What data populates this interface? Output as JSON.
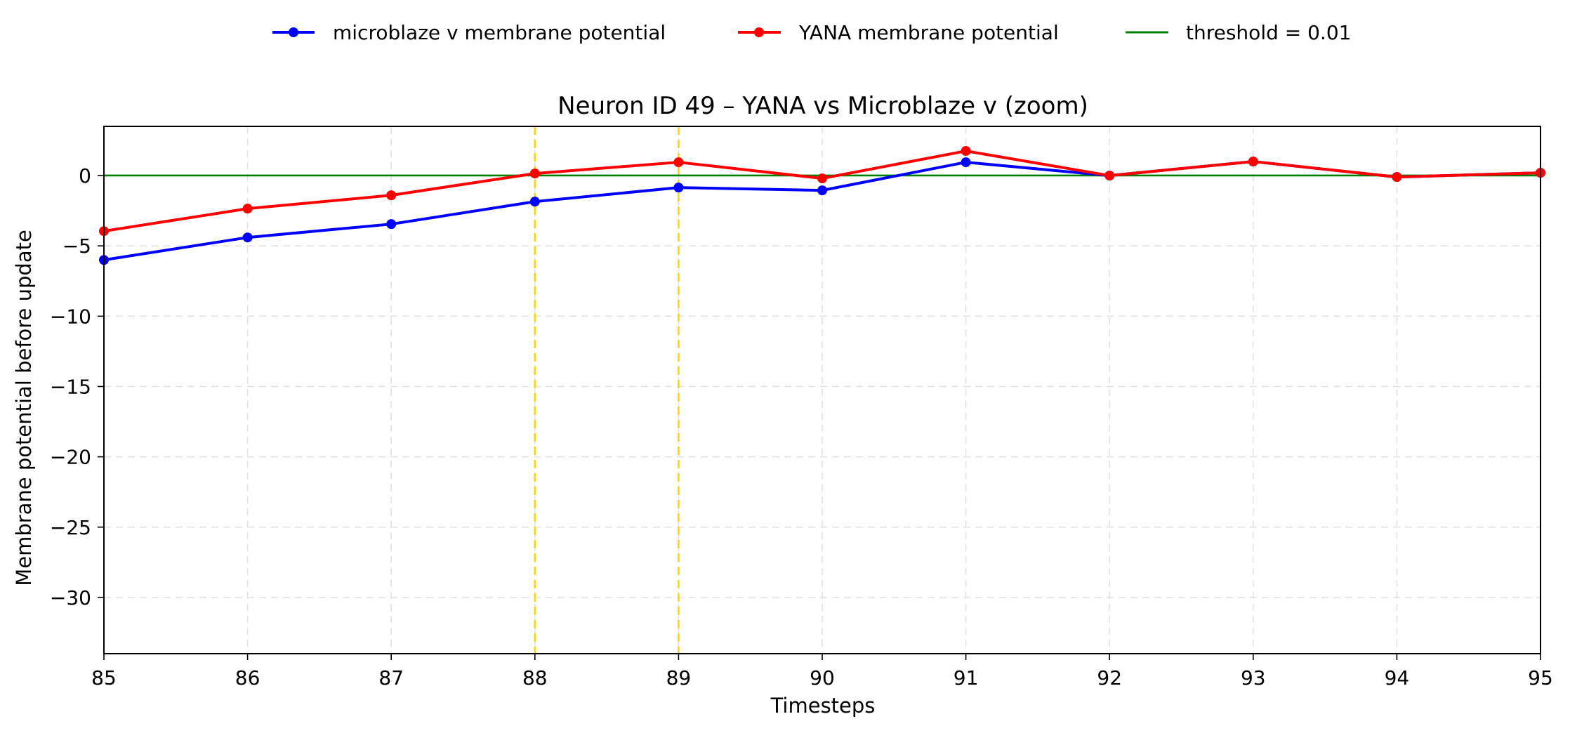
{
  "chart_data": {
    "type": "line",
    "title": "Neuron ID 49 – YANA vs Microblaze v (zoom)",
    "xlabel": "Timesteps",
    "ylabel": "Membrane potential before update",
    "xlim": [
      85,
      95
    ],
    "ylim": [
      -34,
      3.5
    ],
    "x_ticks": [
      85,
      86,
      87,
      88,
      89,
      90,
      91,
      92,
      93,
      94,
      95
    ],
    "y_ticks": [
      0,
      -5,
      -10,
      -15,
      -20,
      -25,
      -30
    ],
    "grid": true,
    "legend_position": "top-center",
    "series": [
      {
        "name": "microblaze v membrane potential",
        "color": "#0000ff",
        "marker": "circle",
        "x": [
          85,
          86,
          87,
          88,
          89,
          90,
          91,
          92,
          93,
          94,
          95
        ],
        "y": [
          -6.0,
          -4.4,
          -3.45,
          -1.85,
          -0.85,
          -1.05,
          0.95,
          0.0,
          1.0,
          -0.1,
          0.2
        ]
      },
      {
        "name": "YANA membrane potential",
        "color": "#ff0000",
        "marker": "circle",
        "x": [
          85,
          86,
          87,
          88,
          89,
          90,
          91,
          92,
          93,
          94,
          95
        ],
        "y": [
          -3.95,
          -2.35,
          -1.4,
          0.15,
          0.95,
          -0.2,
          1.75,
          0.0,
          1.0,
          -0.1,
          0.2
        ]
      }
    ],
    "threshold": {
      "name": "threshold = 0.01",
      "value": 0.01,
      "color": "#008000"
    },
    "vertical_markers": {
      "x": [
        88,
        89
      ],
      "color": "#ffd700",
      "style": "dashed"
    }
  }
}
